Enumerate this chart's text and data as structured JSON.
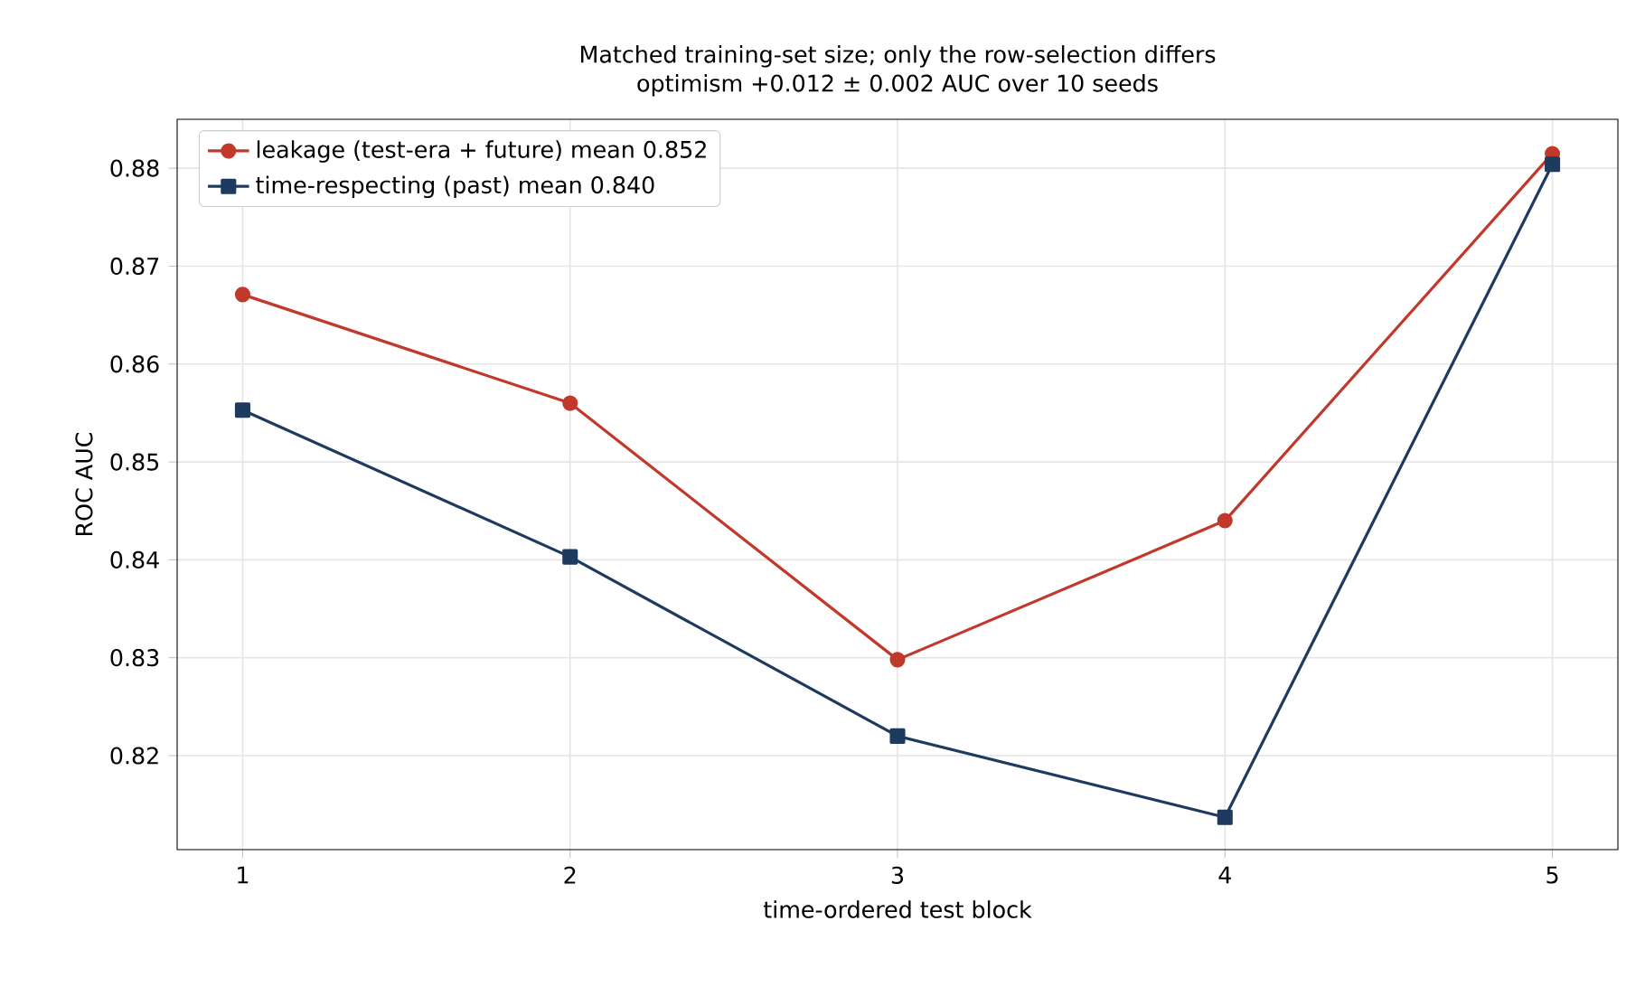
{
  "chart_data": {
    "type": "line",
    "title": "Matched training-set size; only the row-selection differs",
    "subtitle": "optimism +0.012 ± 0.002 AUC over 10 seeds",
    "xlabel": "time-ordered test block",
    "ylabel": "ROC AUC",
    "x": [
      1,
      2,
      3,
      4,
      5
    ],
    "xlim": [
      0.8,
      5.2
    ],
    "xticks": [
      1,
      2,
      3,
      4,
      5
    ],
    "ylim": [
      0.8104,
      0.885
    ],
    "yticks": [
      0.82,
      0.83,
      0.84,
      0.85,
      0.86,
      0.87,
      0.88
    ],
    "grid": true,
    "legend": "top left",
    "line_style": "solid",
    "series": [
      {
        "name": "leakage (test-era + future)  mean 0.852",
        "color": "#c0392b",
        "marker": "circle",
        "values": [
          0.8671,
          0.856,
          0.8298,
          0.844,
          0.8815
        ]
      },
      {
        "name": "time-respecting (past)  mean 0.840",
        "color": "#1f3a5f",
        "marker": "square",
        "values": [
          0.8553,
          0.8403,
          0.822,
          0.8137,
          0.8804
        ]
      }
    ]
  }
}
